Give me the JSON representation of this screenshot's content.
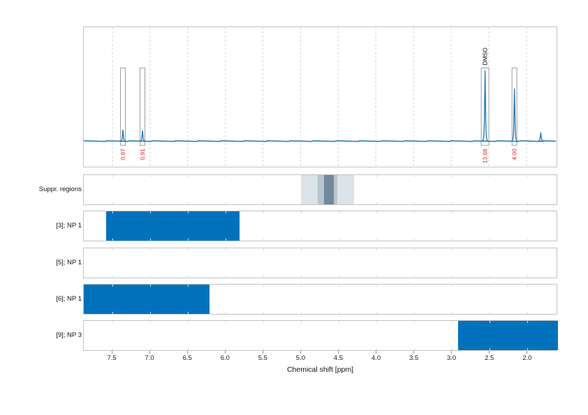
{
  "colors": {
    "spectrum_line": "#1a76b6",
    "region_bar": "#0072bc",
    "integral_label": "#e02424",
    "annotation_text": "#000000",
    "grid_line": "#d4d4d4",
    "panel_border": "#c2c2c2",
    "integral_box": "#9c9c9c",
    "suppression_shades": [
      "#dbe2e8",
      "#b7c6d0",
      "#73889b"
    ]
  },
  "chart_data": [
    {
      "id": "nmr-spectrum",
      "type": "line",
      "title": "",
      "xlabel": "Chemical shift [ppm]",
      "ylabel": "",
      "x_range": [
        7.88,
        1.6
      ],
      "x_axis_reversed": true,
      "x_ticks": [
        7.5,
        7.0,
        6.5,
        6.0,
        5.5,
        5.0,
        4.5,
        4.0,
        3.5,
        3.0,
        2.5,
        2.0
      ],
      "grid": "vertical-dashed",
      "peaks": [
        {
          "ppm": 7.36,
          "rel_height": 0.16,
          "integral": "0.97"
        },
        {
          "ppm": 7.1,
          "rel_height": 0.15,
          "integral": "0.91"
        },
        {
          "ppm": 2.55,
          "rel_height": 1.0,
          "integral": "13.68",
          "annotation": "DMSO"
        },
        {
          "ppm": 2.16,
          "rel_height": 0.74,
          "integral": "4.00"
        },
        {
          "ppm": 1.81,
          "rel_height": 0.12
        }
      ]
    },
    {
      "id": "suppressed-regions",
      "type": "area",
      "label": "Suppr. regions",
      "bands": [
        {
          "from_ppm": 5.0,
          "to_ppm": 4.3,
          "shade": 0
        },
        {
          "from_ppm": 4.78,
          "to_ppm": 4.52,
          "shade": 1
        },
        {
          "from_ppm": 4.7,
          "to_ppm": 4.57,
          "shade": 2
        }
      ]
    },
    {
      "id": "region-3",
      "type": "bar",
      "label": "[3]; NP 1",
      "bars": [
        {
          "from_ppm": 7.58,
          "to_ppm": 5.82
        }
      ]
    },
    {
      "id": "region-5",
      "type": "bar",
      "label": "[5]; NP 1",
      "bars": []
    },
    {
      "id": "region-6",
      "type": "bar",
      "label": "[6]; NP 1",
      "bars": [
        {
          "from_ppm": 7.88,
          "to_ppm": 6.22
        }
      ]
    },
    {
      "id": "region-9",
      "type": "bar",
      "label": "[9]; NP 3",
      "bars": [
        {
          "from_ppm": 2.92,
          "to_ppm": 1.6
        }
      ]
    }
  ]
}
